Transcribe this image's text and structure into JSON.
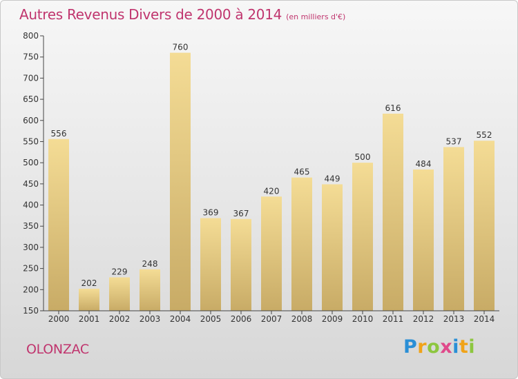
{
  "header": {
    "title": "Autres Revenus Divers de 2000 à 2014",
    "subtitle": "(en milliers d'€)"
  },
  "footer": {
    "town": "OLONZAC"
  },
  "brand": {
    "letters": [
      {
        "char": "P",
        "color": "#2a8fd6"
      },
      {
        "char": "r",
        "color": "#f0a319"
      },
      {
        "char": "o",
        "color": "#8dc63f"
      },
      {
        "char": "x",
        "color": "#e04a8b"
      },
      {
        "char": "i",
        "color": "#2a8fd6"
      },
      {
        "char": "t",
        "color": "#f0a319"
      },
      {
        "char": "i",
        "color": "#8dc63f"
      }
    ]
  },
  "colors": {
    "bar_top": "#f4dc95",
    "bar_bottom": "#c8ab66",
    "title": "#c0356e",
    "axis": "#444444"
  },
  "chart_data": {
    "type": "bar",
    "title": "Autres Revenus Divers de 2000 à 2014",
    "subtitle": "(en milliers d'€)",
    "xlabel": "",
    "ylabel": "",
    "categories": [
      "2000",
      "2001",
      "2002",
      "2003",
      "2004",
      "2005",
      "2006",
      "2007",
      "2008",
      "2009",
      "2010",
      "2011",
      "2012",
      "2013",
      "2014"
    ],
    "values": [
      556,
      202,
      229,
      248,
      760,
      369,
      367,
      420,
      465,
      449,
      500,
      616,
      484,
      537,
      552
    ],
    "ylim": [
      150,
      800
    ],
    "yticks": [
      150,
      200,
      250,
      300,
      350,
      400,
      450,
      500,
      550,
      600,
      650,
      700,
      750,
      800
    ],
    "grid": false,
    "data_labels": true
  }
}
